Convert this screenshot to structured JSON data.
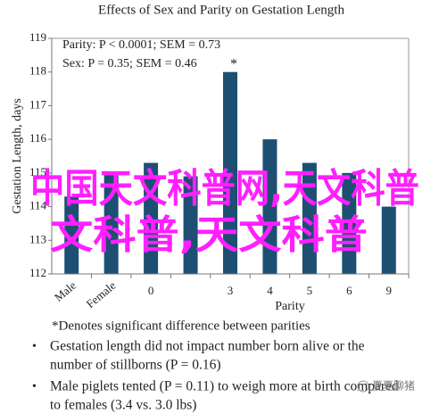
{
  "chart_data": {
    "type": "bar",
    "title": "Effects of Sex and Parity on Gestation Length",
    "annotations": [
      "Parity: P < 0.0001; SEM = 0.73",
      "Sex: P = 0.35; SEM = 0.46"
    ],
    "marker": "*",
    "y_label": "Gestation Length, days",
    "x_label": "Parity",
    "categories": [
      "Male",
      "Female",
      "0",
      null,
      "3",
      "4",
      "5",
      "6",
      "9"
    ],
    "values": [
      114.3,
      115.0,
      115.3,
      114.9,
      118.0,
      116.0,
      115.3,
      115.0,
      114.0
    ],
    "starred": [
      4
    ],
    "color": "#1d4f73",
    "ylim": [
      112,
      119
    ],
    "yticks": [
      112,
      113,
      114,
      115,
      116,
      117,
      118,
      119
    ],
    "grid": false
  },
  "notes": {
    "footnote": "*Denotes significant difference between parities",
    "bullets": [
      [
        "Gestation length did not impact number born alive or the",
        "number of stillborns (P = 0.16)"
      ],
      [
        "Male piglets tented (P = 0.11) to weigh more at birth compared",
        "to females (3.4 vs. 3.0 lbs)"
      ]
    ]
  },
  "watermark": {
    "lines": [
      "中国天文科普网,天文科普",
      "文科普,天文科普"
    ],
    "logo": "夏夏聊猪"
  }
}
